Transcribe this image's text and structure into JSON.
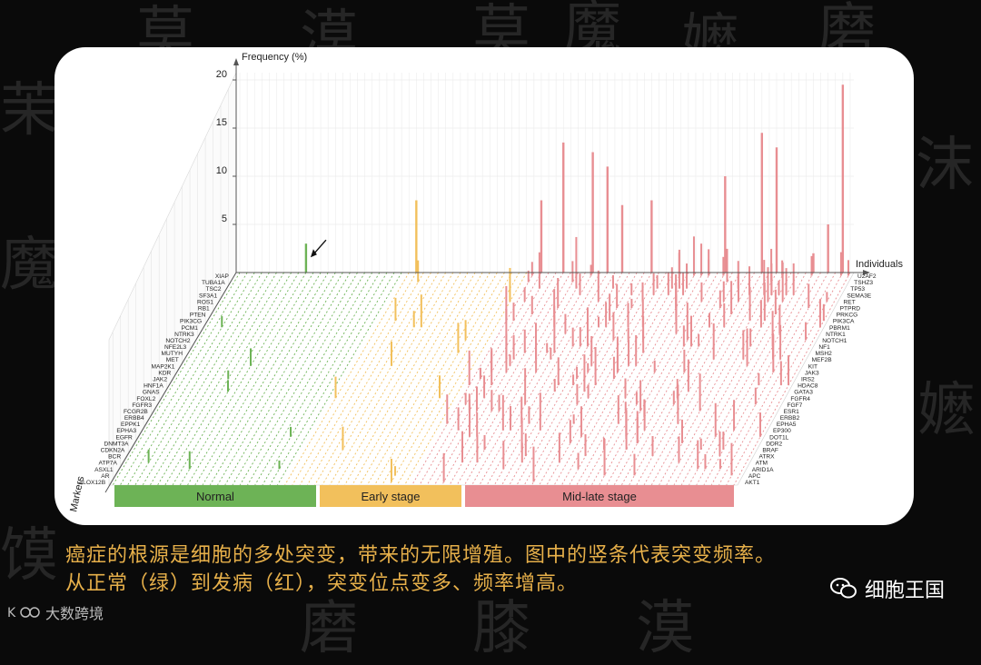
{
  "chart_data": {
    "type": "bar",
    "subtype": "3d-bar",
    "z_axis_label": "Frequency (%)",
    "x_axis_label": "Individuals",
    "y_axis_label": "Markers",
    "z_ticks": [
      5,
      10,
      15,
      20
    ],
    "zlim": [
      0,
      20
    ],
    "left_markers": [
      "XIAP",
      "TUBA1A",
      "TSC2",
      "SF3A1",
      "ROS1",
      "RB1",
      "PTEN",
      "PIK3CG",
      "PCM1",
      "NTRK3",
      "NOTCH2",
      "NFE2L3",
      "MUTYH",
      "MET",
      "MAP2K1",
      "KDR",
      "JAK2",
      "HNF1A",
      "GNAS",
      "FOXL2",
      "FGFR3",
      "FCGR2B",
      "ERBB4",
      "EPPK1",
      "EPHA3",
      "EGFR",
      "DNMT3A",
      "CDKN2A",
      "BCR",
      "ATP7A",
      "ASXL1",
      "AR",
      "ALOX12B"
    ],
    "right_markers": [
      "U2AF2",
      "TSHZ3",
      "TP53",
      "SEMA3E",
      "RET",
      "PTPRD",
      "PRKCG",
      "PIK3CA",
      "PBRM1",
      "NTRK1",
      "NOTCH1",
      "NF1",
      "MSH2",
      "MEF2B",
      "KIT",
      "JAK3",
      "IRS2",
      "HDAC8",
      "GATA3",
      "FGFR4",
      "FGF7",
      "ESR1",
      "ERBB2",
      "EPHA5",
      "EP300",
      "DOT1L",
      "DDR2",
      "BRAF",
      "ATRX",
      "ATM",
      "ARID1A",
      "APC",
      "AKT1"
    ],
    "stages": [
      {
        "name": "Normal",
        "color": "#6db356"
      },
      {
        "name": "Early stage",
        "color": "#f2c05c"
      },
      {
        "name": "Mid-late stage",
        "color": "#e88e92"
      }
    ],
    "back_wall_bars": [
      {
        "stage": "Normal",
        "frequency": 3,
        "highlighted": true
      },
      {
        "stage": "Early stage",
        "frequency": 7.5
      },
      {
        "stage": "Mid-late stage",
        "frequency": 7.5
      },
      {
        "stage": "Mid-late stage",
        "frequency": 13.5
      },
      {
        "stage": "Mid-late stage",
        "frequency": 12.5
      },
      {
        "stage": "Mid-late stage",
        "frequency": 11
      },
      {
        "stage": "Mid-late stage",
        "frequency": 7
      },
      {
        "stage": "Mid-late stage",
        "frequency": 7.5
      },
      {
        "stage": "Mid-late stage",
        "frequency": 10
      },
      {
        "stage": "Mid-late stage",
        "frequency": 14.5
      },
      {
        "stage": "Mid-late stage",
        "frequency": 13
      },
      {
        "stage": "Mid-late stage",
        "frequency": 2
      },
      {
        "stage": "Mid-late stage",
        "frequency": 5
      },
      {
        "stage": "Mid-late stage",
        "frequency": 19.5
      }
    ]
  },
  "caption": {
    "line1": "癌症的根源是细胞的多处突变，带来的无限增殖。图中的竖条代表突变频率。",
    "line2": "从正常（绿）到发病（红），突变位点变多、频率增高。"
  },
  "brand": {
    "name": "细胞王国"
  },
  "watermark": {
    "text": "大数跨境"
  },
  "background_chars": [
    "莫",
    "漠",
    "莫",
    "魔",
    "嬷",
    "磨",
    "茉",
    "沫",
    "魔",
    "嬷",
    "馍",
    "磨",
    "膝",
    "漠"
  ]
}
